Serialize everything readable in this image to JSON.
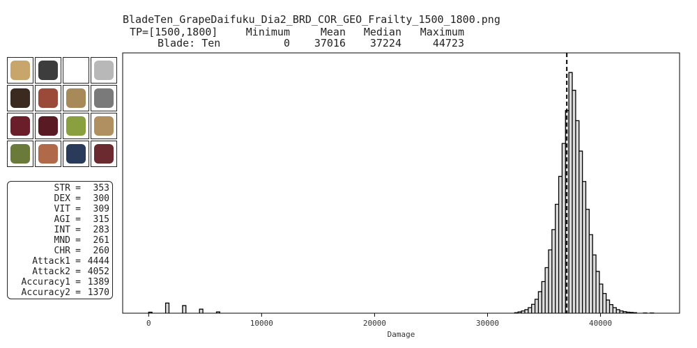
{
  "file_title": "BladeTen_GrapeDaifuku_Dia2_BRD_COR_GEO_Frailty_1500_1800.png",
  "stats_table": {
    "header": [
      "TP=[1500,1800]",
      "Minimum",
      "Mean",
      "Median",
      "Maximum"
    ],
    "row": [
      "Blade: Ten",
      "0",
      "37016",
      "37224",
      "44723"
    ]
  },
  "gear": [
    {
      "name": "main-weapon-icon",
      "color": "#c8a56a"
    },
    {
      "name": "sub-weapon-icon",
      "color": "#3d3d3d"
    },
    {
      "name": "ranged-empty-slot",
      "color": "#ffffff"
    },
    {
      "name": "ammo-icon",
      "color": "#b8b8b8"
    },
    {
      "name": "head-icon",
      "color": "#3a2a20"
    },
    {
      "name": "neck-icon",
      "color": "#9b4a3a"
    },
    {
      "name": "ear1-icon",
      "color": "#a88a5a"
    },
    {
      "name": "ear2-icon",
      "color": "#7a7a7a"
    },
    {
      "name": "body-icon",
      "color": "#6a1e2a"
    },
    {
      "name": "hands-icon",
      "color": "#5a1a24"
    },
    {
      "name": "ring1-icon",
      "color": "#8aa040"
    },
    {
      "name": "ring2-icon",
      "color": "#b09060"
    },
    {
      "name": "back-icon",
      "color": "#6a7a3a"
    },
    {
      "name": "waist-icon",
      "color": "#b06a4a"
    },
    {
      "name": "legs-icon",
      "color": "#2a3a5a"
    },
    {
      "name": "feet-icon",
      "color": "#6a2a30"
    }
  ],
  "player_stats": [
    {
      "label": "STR",
      "value": "353"
    },
    {
      "label": "DEX",
      "value": "300"
    },
    {
      "label": "VIT",
      "value": "309"
    },
    {
      "label": "AGI",
      "value": "315"
    },
    {
      "label": "INT",
      "value": "283"
    },
    {
      "label": "MND",
      "value": "261"
    },
    {
      "label": "CHR",
      "value": "260"
    },
    {
      "label": "Attack1",
      "value": "4444"
    },
    {
      "label": "Attack2",
      "value": "4052"
    },
    {
      "label": "Accuracy1",
      "value": "1389"
    },
    {
      "label": "Accuracy2",
      "value": "1370"
    }
  ],
  "chart_data": {
    "type": "histogram",
    "title": "",
    "xlabel": "Damage",
    "ylabel": "",
    "xlim": [
      -2300,
      47000
    ],
    "ylim": [
      0,
      1
    ],
    "x_ticks": [
      0,
      10000,
      20000,
      30000,
      40000
    ],
    "x_tick_labels": [
      "0",
      "10000",
      "20000",
      "30000",
      "40000"
    ],
    "bin_width": 300,
    "fill_color": "#dcdcdc",
    "edge_color": "#000000",
    "mean_line": 37016,
    "bins": [
      {
        "x": 0,
        "h": 0.004
      },
      {
        "x": 1500,
        "h": 0.04
      },
      {
        "x": 3000,
        "h": 0.03
      },
      {
        "x": 4500,
        "h": 0.016
      },
      {
        "x": 6000,
        "h": 0.005
      },
      {
        "x": 32400,
        "h": 0.002
      },
      {
        "x": 32700,
        "h": 0.005
      },
      {
        "x": 33000,
        "h": 0.009
      },
      {
        "x": 33300,
        "h": 0.014
      },
      {
        "x": 33600,
        "h": 0.022
      },
      {
        "x": 33900,
        "h": 0.035
      },
      {
        "x": 34200,
        "h": 0.055
      },
      {
        "x": 34500,
        "h": 0.085
      },
      {
        "x": 34800,
        "h": 0.125
      },
      {
        "x": 35100,
        "h": 0.18
      },
      {
        "x": 35400,
        "h": 0.25
      },
      {
        "x": 35700,
        "h": 0.33
      },
      {
        "x": 36000,
        "h": 0.43
      },
      {
        "x": 36300,
        "h": 0.54
      },
      {
        "x": 36600,
        "h": 0.67
      },
      {
        "x": 36900,
        "h": 0.8
      },
      {
        "x": 37200,
        "h": 0.95
      },
      {
        "x": 37500,
        "h": 0.88
      },
      {
        "x": 37800,
        "h": 0.76
      },
      {
        "x": 38100,
        "h": 0.64
      },
      {
        "x": 38400,
        "h": 0.52
      },
      {
        "x": 38700,
        "h": 0.41
      },
      {
        "x": 39000,
        "h": 0.31
      },
      {
        "x": 39300,
        "h": 0.23
      },
      {
        "x": 39600,
        "h": 0.165
      },
      {
        "x": 39900,
        "h": 0.115
      },
      {
        "x": 40200,
        "h": 0.078
      },
      {
        "x": 40500,
        "h": 0.052
      },
      {
        "x": 40800,
        "h": 0.034
      },
      {
        "x": 41100,
        "h": 0.022
      },
      {
        "x": 41400,
        "h": 0.014
      },
      {
        "x": 41700,
        "h": 0.009
      },
      {
        "x": 42000,
        "h": 0.006
      },
      {
        "x": 42300,
        "h": 0.004
      },
      {
        "x": 42600,
        "h": 0.003
      },
      {
        "x": 42900,
        "h": 0.002
      },
      {
        "x": 43800,
        "h": 0.001
      },
      {
        "x": 44400,
        "h": 0.001
      }
    ]
  }
}
